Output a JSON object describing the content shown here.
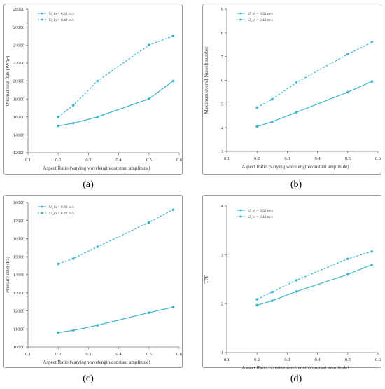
{
  "colors": {
    "series": "#35b4cc",
    "axis": "#777777",
    "text": "#333333"
  },
  "captions": [
    "(a)",
    "(b)",
    "(c)",
    "(d)"
  ],
  "chart_data": [
    {
      "type": "line",
      "xlabel": "Aspect Ratio (varying wavelength/constant amplitude)",
      "ylabel": "Optimal heat flux (W/m²)",
      "xlim": [
        0.1,
        0.6
      ],
      "ylim": [
        12000,
        28000
      ],
      "xticks": [
        "0.1",
        "0.2",
        "0.3",
        "0.4",
        "0.5",
        "0.6"
      ],
      "yticks": [
        "12000",
        "14000",
        "16000",
        "18000",
        "20000",
        "22000",
        "24000",
        "26000",
        "28000"
      ],
      "x": [
        0.2,
        0.25,
        0.33,
        0.5,
        0.58
      ],
      "series": [
        {
          "name": "U_in = 0.32 m/s",
          "values": [
            15000,
            15300,
            16000,
            18000,
            20000
          ],
          "style": "solid"
        },
        {
          "name": "U_in = 0.42 m/s",
          "values": [
            16000,
            17300,
            20000,
            24000,
            25000
          ],
          "style": "dashed"
        }
      ],
      "legend": "top-left"
    },
    {
      "type": "line",
      "xlabel": "Aspect Ratio (varying wavelength/constant amplitude)",
      "ylabel": "Maximum overall Nusselt number",
      "xlim": [
        0.1,
        0.6
      ],
      "ylim": [
        3,
        9
      ],
      "xticks": [
        "0.1",
        "0.2",
        "0.3",
        "0.4",
        "0.5",
        "0.6"
      ],
      "yticks": [
        "3",
        "4",
        "5",
        "6",
        "7",
        "8",
        "9"
      ],
      "x": [
        0.2,
        0.25,
        0.33,
        0.5,
        0.58
      ],
      "series": [
        {
          "name": "U_in = 0.32 m/s",
          "values": [
            4.05,
            4.25,
            4.65,
            5.5,
            5.95
          ],
          "style": "solid"
        },
        {
          "name": "U_in = 0.42 m/s",
          "values": [
            4.85,
            5.2,
            5.9,
            7.1,
            7.6
          ],
          "style": "dashed"
        }
      ],
      "legend": "top-left"
    },
    {
      "type": "line",
      "xlabel": "Aspect Ratio (varying wavelength/constant amplitude)",
      "ylabel": "Pressure drop (Pa)",
      "xlim": [
        0.1,
        0.6
      ],
      "ylim": [
        10000,
        18000
      ],
      "xticks": [
        "0.1",
        "0.2",
        "0.3",
        "0.4",
        "0.5",
        "0.6"
      ],
      "yticks": [
        "10000",
        "11000",
        "12000",
        "13000",
        "14000",
        "15000",
        "16000",
        "17000",
        "18000"
      ],
      "x": [
        0.2,
        0.25,
        0.33,
        0.5,
        0.58
      ],
      "series": [
        {
          "name": "U_in = 0.32 m/s",
          "values": [
            10800,
            10920,
            11200,
            11900,
            12200
          ],
          "style": "solid"
        },
        {
          "name": "U_in = 0.42 m/s",
          "values": [
            14600,
            14900,
            15550,
            16900,
            17600
          ],
          "style": "dashed"
        }
      ],
      "legend": "top-left"
    },
    {
      "type": "line",
      "xlabel": "Aspect Ratio (varying wavelength/constant amplitude)",
      "ylabel": "TPF",
      "xlim": [
        0.1,
        0.6
      ],
      "ylim": [
        1,
        4
      ],
      "xticks": [
        "0.1",
        "0.2",
        "0.3",
        "0.4",
        "0.5",
        "0.6"
      ],
      "yticks": [
        "1",
        "2",
        "3",
        "4"
      ],
      "x": [
        0.2,
        0.25,
        0.33,
        0.5,
        0.58
      ],
      "series": [
        {
          "name": "U_in = 0.32 m/s",
          "values": [
            1.97,
            2.06,
            2.25,
            2.6,
            2.8
          ],
          "style": "solid"
        },
        {
          "name": "U_in = 0.42 m/s",
          "values": [
            2.09,
            2.24,
            2.48,
            2.92,
            3.07
          ],
          "style": "dashed"
        }
      ],
      "legend": "top-left"
    }
  ]
}
